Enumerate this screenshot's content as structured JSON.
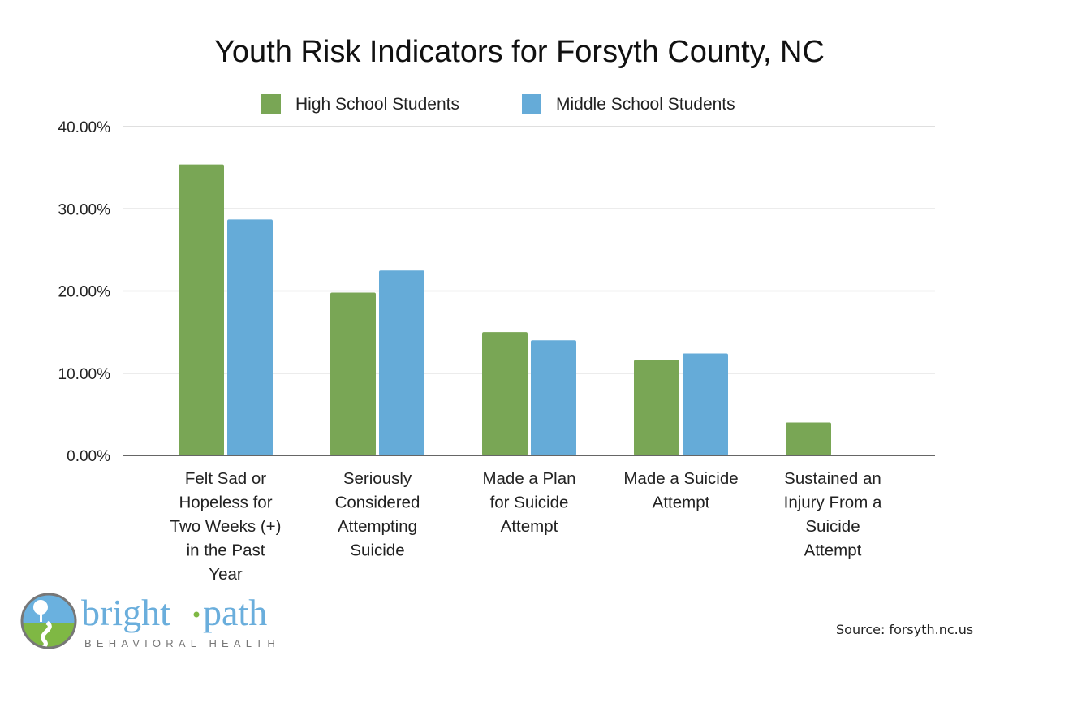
{
  "chart_data": {
    "type": "bar",
    "title": "Youth Risk Indicators for Forsyth County, NC",
    "categories": [
      [
        "Felt Sad or",
        "Hopeless for",
        "Two Weeks (+)",
        "in the Past",
        "Year"
      ],
      [
        "Seriously",
        "Considered",
        "Attempting",
        "Suicide"
      ],
      [
        "Made a Plan",
        "for Suicide",
        "Attempt"
      ],
      [
        "Made a Suicide",
        "Attempt"
      ],
      [
        "Sustained an",
        "Injury From a",
        "Suicide",
        "Attempt"
      ]
    ],
    "series": [
      {
        "name": "High School Students",
        "color": "#79a655",
        "values": [
          35.4,
          19.8,
          15.0,
          11.6,
          4.0
        ]
      },
      {
        "name": "Middle School Students",
        "color": "#65abd8",
        "values": [
          28.7,
          22.5,
          14.0,
          12.4,
          null
        ]
      }
    ],
    "yticks": [
      "0.00%",
      "10.00%",
      "20.00%",
      "30.00%",
      "40.00%"
    ],
    "ylim": [
      0,
      40
    ],
    "grid": true,
    "legend": "top-center",
    "xlabel": "",
    "ylabel": ""
  },
  "logo": {
    "name": "bright·path",
    "subtitle": "BEHAVIORAL HEALTH"
  },
  "source": "Source: forsyth.nc.us"
}
